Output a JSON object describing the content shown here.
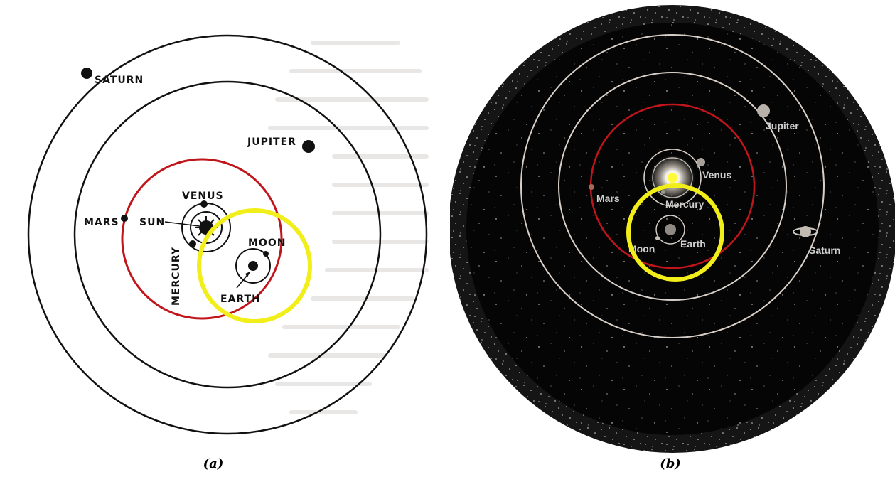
{
  "panel_a": {
    "caption": "(a)",
    "labels": {
      "saturn": "SATURN",
      "jupiter": "JUPITER",
      "venus": "VENUS",
      "mars": "MARS",
      "sun": "SUN",
      "mercury": "MERCURY",
      "moon": "MOON",
      "earth": "EARTH"
    }
  },
  "panel_b": {
    "caption": "(b)",
    "labels": {
      "jupiter": "Jupiter",
      "venus": "Venus",
      "mars": "Mars",
      "mercury": "Mercury",
      "moon": "Moon",
      "earth": "Earth",
      "saturn": "Saturn"
    }
  },
  "colors": {
    "orbit_dark": "#111111",
    "mars_orbit": "#c0151b",
    "highlight": "#f2ee1a",
    "space": "#050505",
    "orbit_light": "#d8d0c8"
  }
}
